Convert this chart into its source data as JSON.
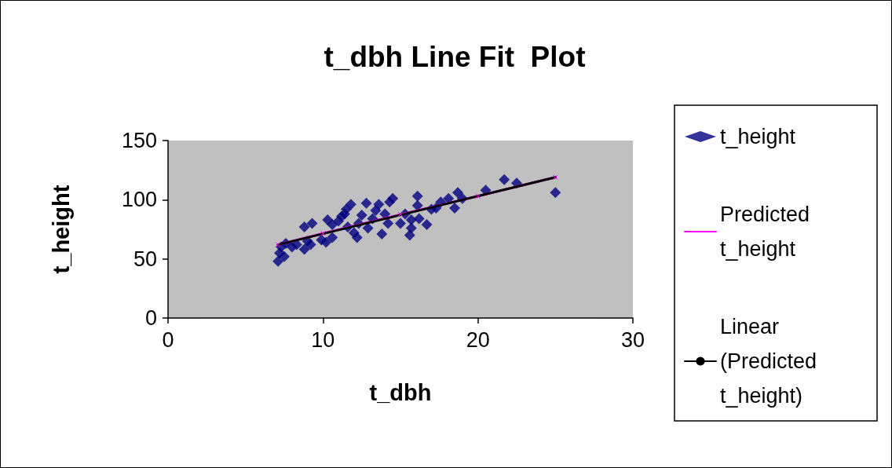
{
  "chart_data": {
    "type": "scatter",
    "title": "t_dbh Line Fit  Plot",
    "xlabel": "t_dbh",
    "ylabel": "t_height",
    "xlim": [
      0,
      30
    ],
    "xticks": [
      0,
      10,
      20,
      30
    ],
    "ylim": [
      0,
      150
    ],
    "yticks": [
      0,
      50,
      100,
      150
    ],
    "grid": false,
    "legend": "right",
    "series": [
      {
        "name": "t_height",
        "marker": "diamond",
        "color": "#000080",
        "x": [
          7.1,
          7.2,
          7.5,
          7.3,
          7.6,
          8.0,
          8.3,
          8.8,
          9.0,
          9.2,
          8.8,
          9.3,
          9.9,
          10.2,
          10.3,
          10.6,
          10.6,
          11.0,
          11.2,
          11.4,
          11.5,
          11.8,
          11.6,
          12.0,
          12.2,
          12.3,
          12.5,
          12.8,
          12.9,
          13.2,
          13.4,
          13.6,
          13.8,
          14.0,
          14.3,
          14.5,
          14.2,
          15.0,
          15.3,
          15.6,
          15.7,
          15.7,
          16.1,
          16.1,
          16.2,
          16.7,
          17.0,
          17.3,
          17.6,
          18.1,
          18.5,
          18.7,
          19.0,
          20.5,
          21.7,
          22.5,
          25.0
        ],
        "values": [
          48,
          55,
          52,
          60,
          63,
          60,
          62,
          58,
          65,
          62,
          77,
          80,
          66,
          64,
          83,
          68,
          79,
          82,
          86,
          88,
          92,
          96,
          77,
          72,
          68,
          80,
          87,
          97,
          76,
          84,
          91,
          96,
          71,
          88,
          98,
          101,
          80,
          80,
          88,
          70,
          76,
          83,
          103,
          95,
          84,
          79,
          92,
          93,
          98,
          101,
          93,
          106,
          101,
          108,
          117,
          114,
          106
        ]
      },
      {
        "name": "Predicted t_height",
        "type": "line",
        "marker": "cross",
        "line_style": "solid",
        "color": "#ff00ff",
        "x": [
          7.1,
          10,
          15,
          20,
          25
        ],
        "values": [
          62,
          71.5,
          87.5,
          103,
          119
        ]
      },
      {
        "name": "Linear (Predicted t_height)",
        "type": "line",
        "marker": "none",
        "line_style": "solid",
        "color": "#000000",
        "x": [
          7.1,
          25
        ],
        "values": [
          62,
          119
        ]
      }
    ]
  }
}
